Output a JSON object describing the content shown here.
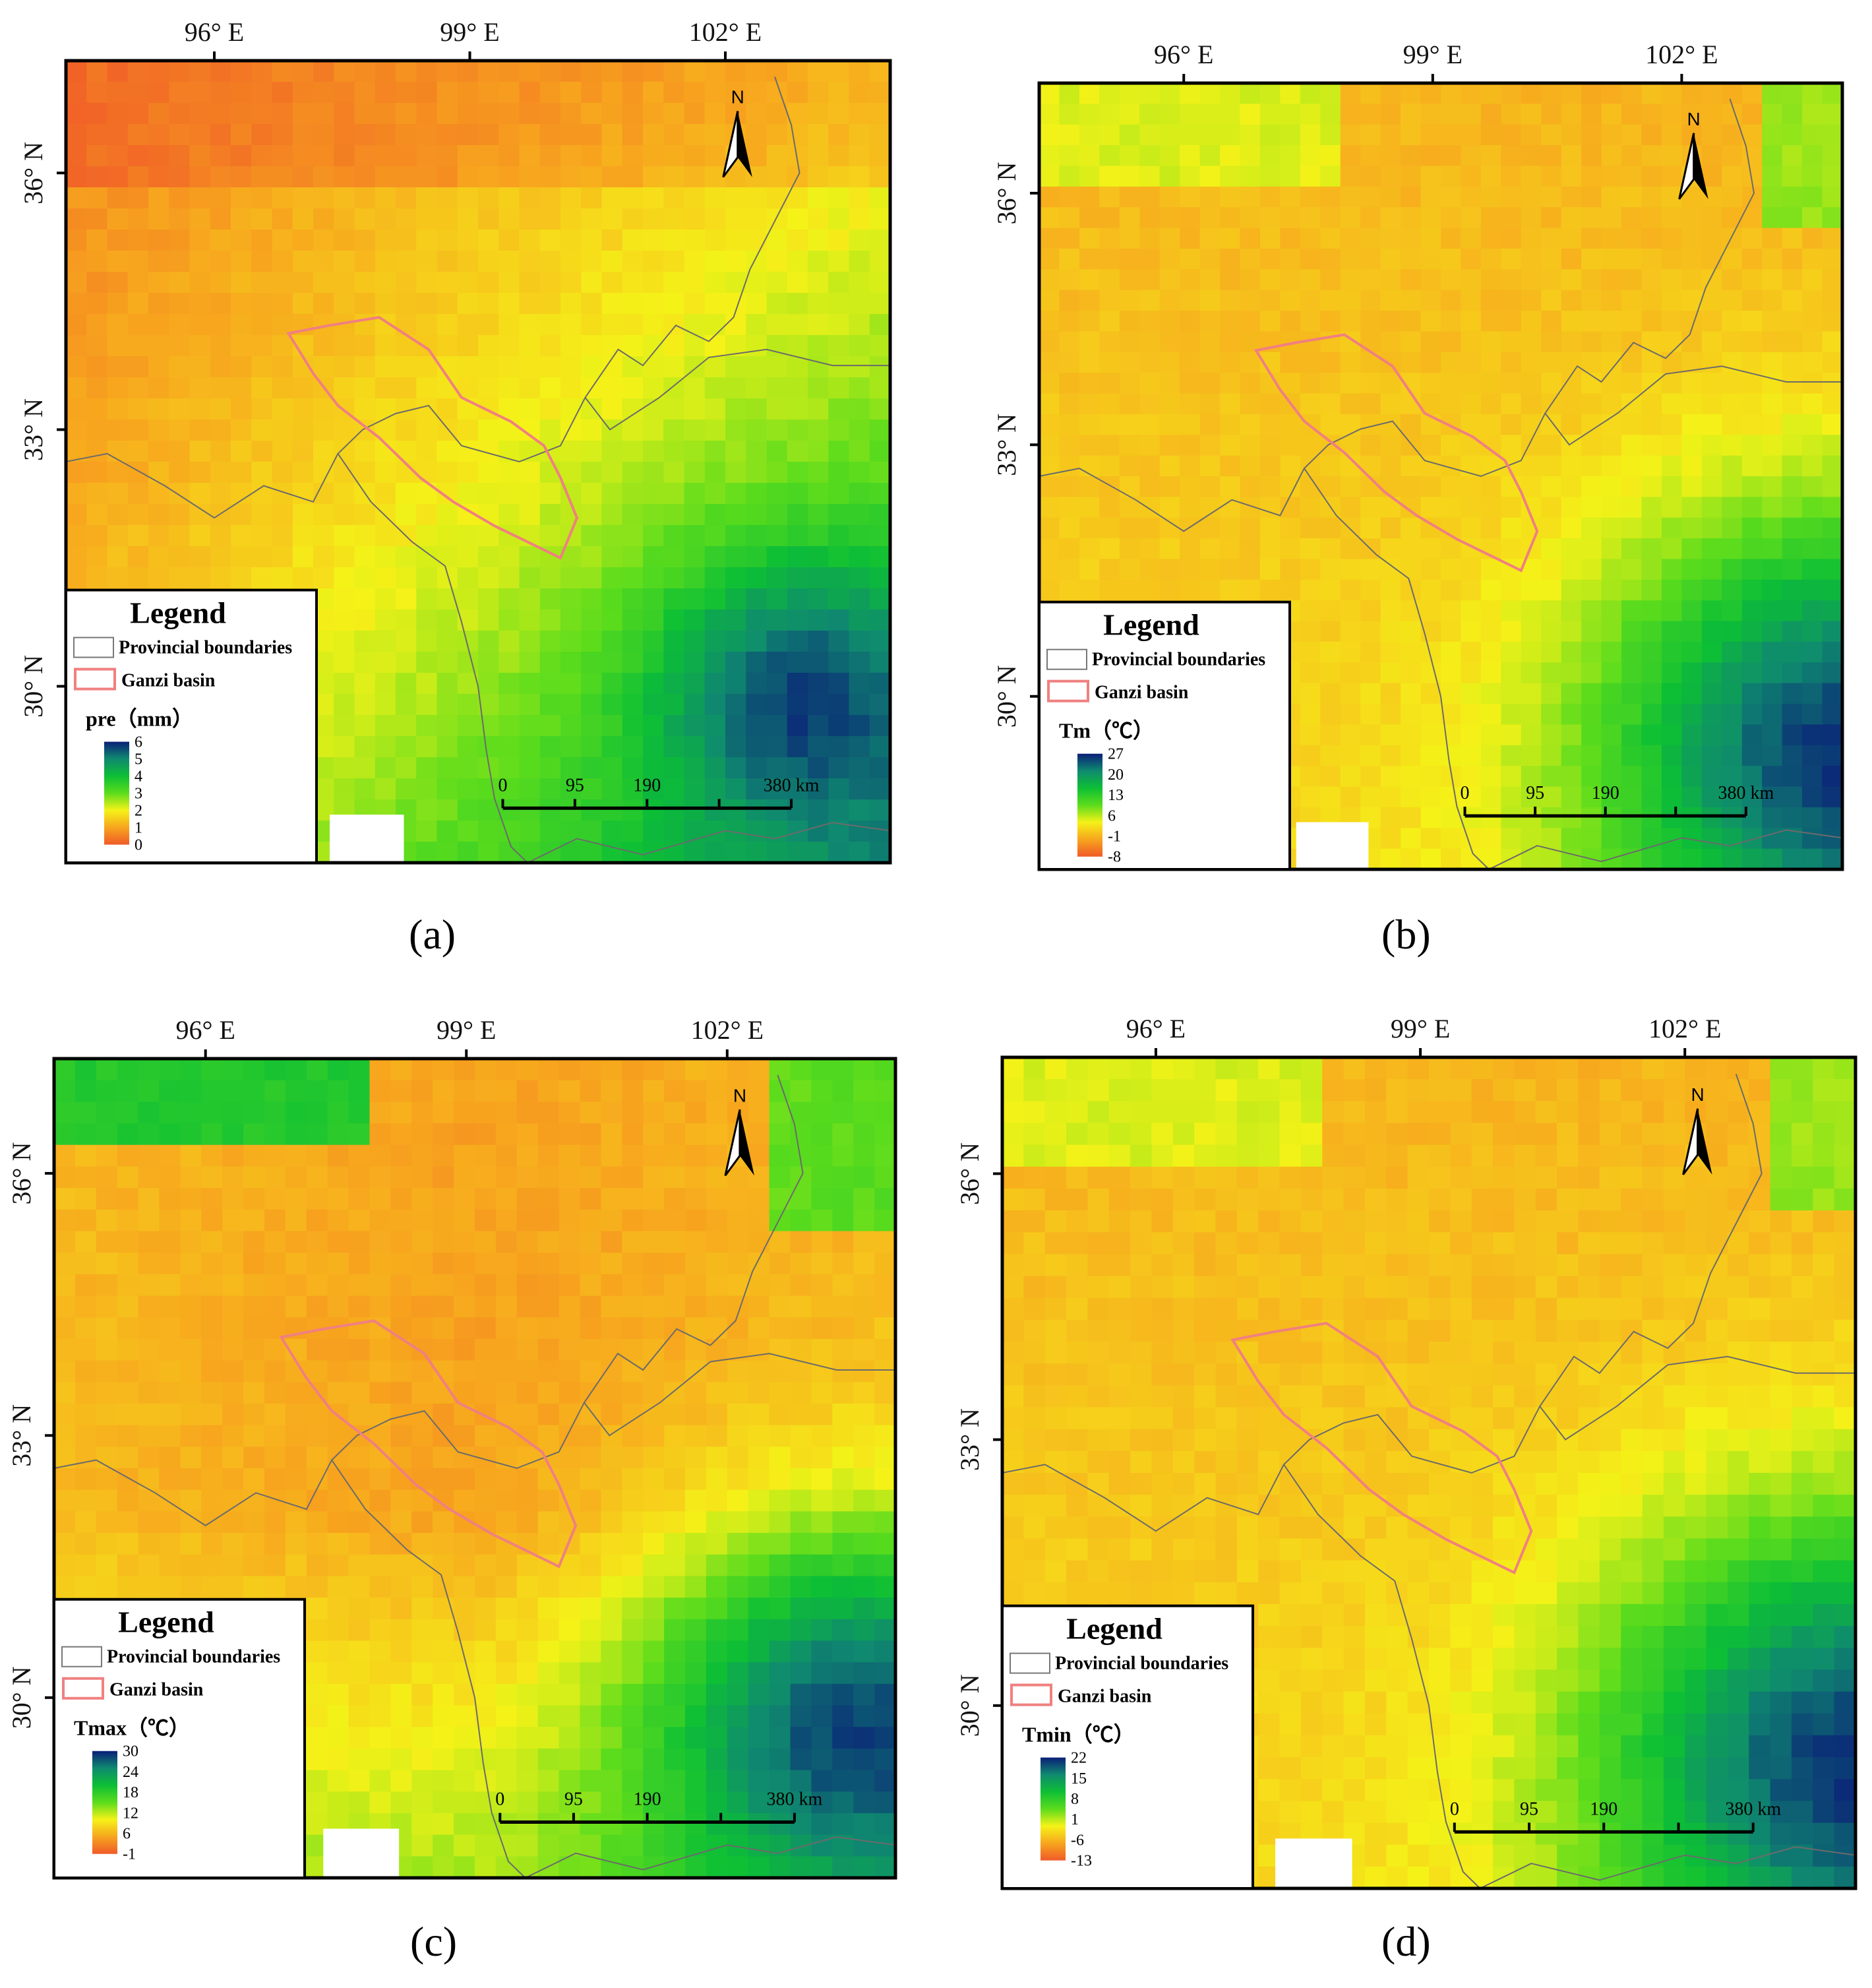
{
  "figure": {
    "colors": {
      "ramp": [
        "#f05a28",
        "#f7a51e",
        "#f5f218",
        "#5cdc1c",
        "#0dbf35",
        "#0f8a6f",
        "#0a1f78"
      ],
      "basin_outline": "#f08080",
      "province_line": "#6b6b6b",
      "frame": "#000000",
      "nodata": "#ffffff"
    },
    "panels": [
      {
        "id": "a",
        "caption": "(a)",
        "lon_labels": [
          "96° E",
          "99° E",
          "102° E"
        ],
        "lat_labels": [
          "36° N",
          "33° N",
          "30° N"
        ],
        "legend": {
          "title": "Legend",
          "items": [
            "Provincial boundaries",
            "Ganzi  basin"
          ],
          "ramp_title": "pre（mm）",
          "ramp_ticks": [
            "6",
            "5",
            "4",
            "3",
            "2",
            "1",
            "0"
          ]
        },
        "scale_bar": {
          "ticks": [
            "0",
            "95",
            "190",
            "380 km"
          ]
        },
        "north": "N",
        "field": {
          "base": 0.52,
          "pattern": "pre"
        }
      },
      {
        "id": "b",
        "caption": "(b)",
        "lon_labels": [
          "96° E",
          "99° E",
          "102° E"
        ],
        "lat_labels": [
          "36° N",
          "33° N",
          "30° N"
        ],
        "legend": {
          "title": "Legend",
          "items": [
            "Provincial boundaries",
            "Ganzi  basin"
          ],
          "ramp_title": "Tm（℃）",
          "ramp_ticks": [
            "27",
            "20",
            "13",
            "6",
            "-1",
            "-8"
          ]
        },
        "scale_bar": {
          "ticks": [
            "0",
            "95",
            "190",
            "380 km"
          ]
        },
        "north": "N",
        "field": {
          "base": 0.3,
          "pattern": "temp"
        }
      },
      {
        "id": "c",
        "caption": "(c)",
        "lon_labels": [
          "96° E",
          "99° E",
          "102° E"
        ],
        "lat_labels": [
          "36° N",
          "33° N",
          "30° N"
        ],
        "legend": {
          "title": "Legend",
          "items": [
            "Provincial boundaries",
            "Ganzi  basin"
          ],
          "ramp_title": "Tmax（℃）",
          "ramp_ticks": [
            "30",
            "24",
            "18",
            "12",
            "6",
            "-1"
          ]
        },
        "scale_bar": {
          "ticks": [
            "0",
            "95",
            "190",
            "380 km"
          ]
        },
        "north": "N",
        "field": {
          "base": 0.38,
          "pattern": "tmax"
        }
      },
      {
        "id": "d",
        "caption": "(d)",
        "lon_labels": [
          "96° E",
          "99° E",
          "102° E"
        ],
        "lat_labels": [
          "36° N",
          "33° N",
          "30° N"
        ],
        "legend": {
          "title": "Legend",
          "items": [
            "Provincial boundaries",
            "Ganzi  basin"
          ],
          "ramp_title": "Tmin（℃）",
          "ramp_ticks": [
            "22",
            "15",
            "8",
            "1",
            "-6",
            "-13"
          ]
        },
        "scale_bar": {
          "ticks": [
            "0",
            "95",
            "190",
            "380 km"
          ]
        },
        "north": "N",
        "field": {
          "base": 0.28,
          "pattern": "temp"
        }
      }
    ]
  }
}
